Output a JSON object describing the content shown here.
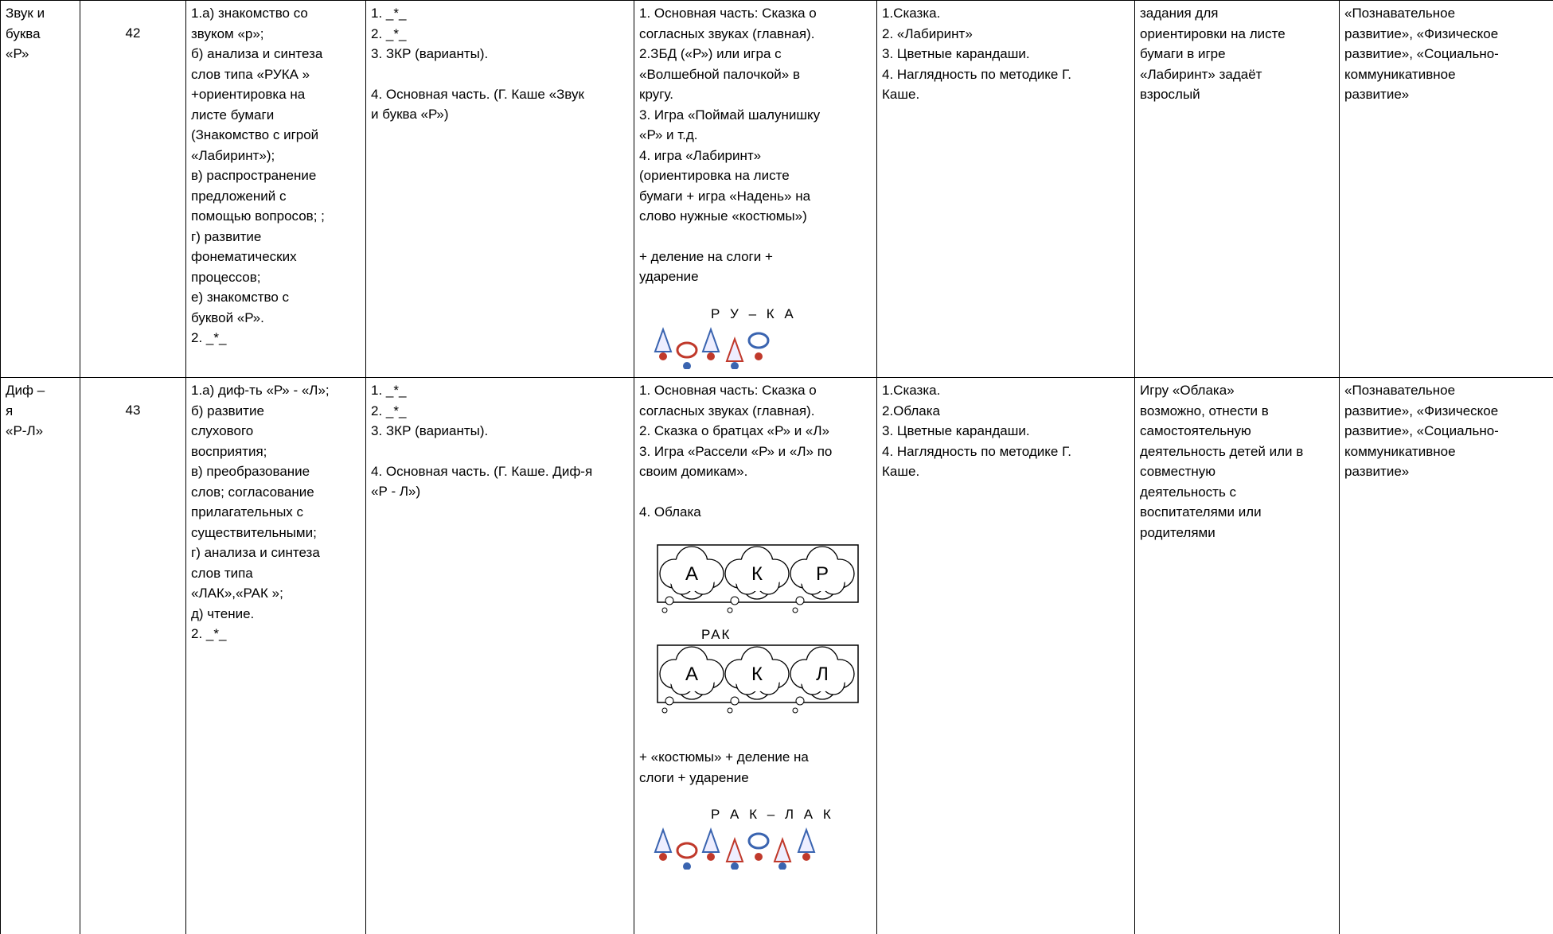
{
  "table": {
    "rows": [
      {
        "cells": [
          [
            [
              "Звук и",
              "буква",
              "«Р»"
            ]
          ],
          [
            [
              "42"
            ]
          ],
          [
            [
              "1.а) знакомство со",
              "звуком «р»;",
              "б) анализа и синтеза",
              "слов типа «РУКА »",
              "+ориентировка на",
              "листе бумаги",
              "(Знакомство с игрой",
              "«Лабиринт»);",
              "в) распространение",
              "предложений с",
              "помощью вопросов; ;",
              "г) развитие",
              "фонематических",
              "процессов;",
              "е) знакомство с",
              "буквой «Р».",
              "2. _*_"
            ]
          ],
          [
            [
              "1. _*_",
              "2. _*_",
              "3. ЗКР (варианты)."
            ],
            [
              "4. Основная часть. (Г. Каше «Звук",
              "и буква «Р»)"
            ]
          ],
          [
            [
              "1. Основная часть: Сказка о",
              "согласных звуках (главная).",
              "2.ЗБД («Р») или игра с",
              "«Волшебной палочкой» в",
              "кругу.",
              "3. Игра «Поймай шалунишку",
              "«Р» и т.д.",
              "4. игра «Лабиринт»",
              "(ориентировка на листе",
              "бумаги + игра «Надень» на",
              "слово нужные «костюмы»)"
            ],
            [
              "+ деление на слоги +",
              "ударение"
            ],
            {
              "tokens": "Р У – К А"
            }
          ],
          [
            [
              "1.Сказка.",
              "2. «Лабиринт»",
              "3. Цветные карандаши.",
              "4. Наглядность по методике Г.",
              "Каше."
            ]
          ],
          [
            [
              "задания для",
              "ориентировки на листе",
              "бумаги в игре",
              "«Лабиринт» задаёт",
              "взрослый"
            ]
          ],
          [
            [
              "«Познавательное",
              "развитие», «Физическое",
              "развитие», «Социально-",
              "коммуникативное",
              "развитие»"
            ]
          ]
        ]
      },
      {
        "cells": [
          [
            [
              "Диф –",
              "я",
              "«Р-Л»"
            ]
          ],
          [
            [
              "43"
            ]
          ],
          [
            [
              "1.а) диф-ть «Р» - «Л»;",
              "б) развитие",
              "слухового",
              "восприятия;",
              "в) преобразование",
              "слов; согласование",
              "прилагательных с",
              "существительными;",
              "г) анализа и синтеза",
              "слов типа",
              "«ЛАК»,«РАК »;",
              "д) чтение.",
              "2. _*_"
            ]
          ],
          [
            [
              "1. _*_",
              "2. _*_",
              "3. ЗКР (варианты)."
            ],
            [
              "4. Основная часть. (Г. Каше. Диф-я",
              "«Р - Л»)"
            ]
          ],
          [
            [
              "1. Основная часть: Сказка о",
              "согласных звуках (главная).",
              "2. Сказка о братцах «Р» и «Л»",
              "3. Игра «Рассели «Р» и «Л» по",
              "своим домикам»."
            ],
            [
              "4. Облака"
            ],
            {
              "clouds": [
                {
                  "letters": [
                    "А",
                    "К",
                    "Р"
                  ]
                },
                {
                  "caption": "РАК",
                  "letters": [
                    "А",
                    "К",
                    "Л"
                  ]
                }
              ]
            },
            [
              "+ «костюмы» + деление на",
              "слоги + ударение"
            ],
            {
              "tokens": "Р А К – Л А К"
            }
          ],
          [
            [
              "1.Сказка.",
              "2.Облака",
              "3. Цветные карандаши.",
              "4. Наглядность по методике Г.",
              "Каше."
            ]
          ],
          [
            [
              "Игру «Облака»",
              "возможно, отнести в",
              "самостоятельную",
              "деятельность детей или в",
              "совместную",
              "деятельность с",
              "воспитателями или",
              "родителями"
            ]
          ],
          [
            [
              "«Познавательное",
              "развитие», «Физическое",
              "развитие», «Социально-",
              "коммуникативное",
              "развитие»"
            ]
          ]
        ]
      }
    ]
  }
}
